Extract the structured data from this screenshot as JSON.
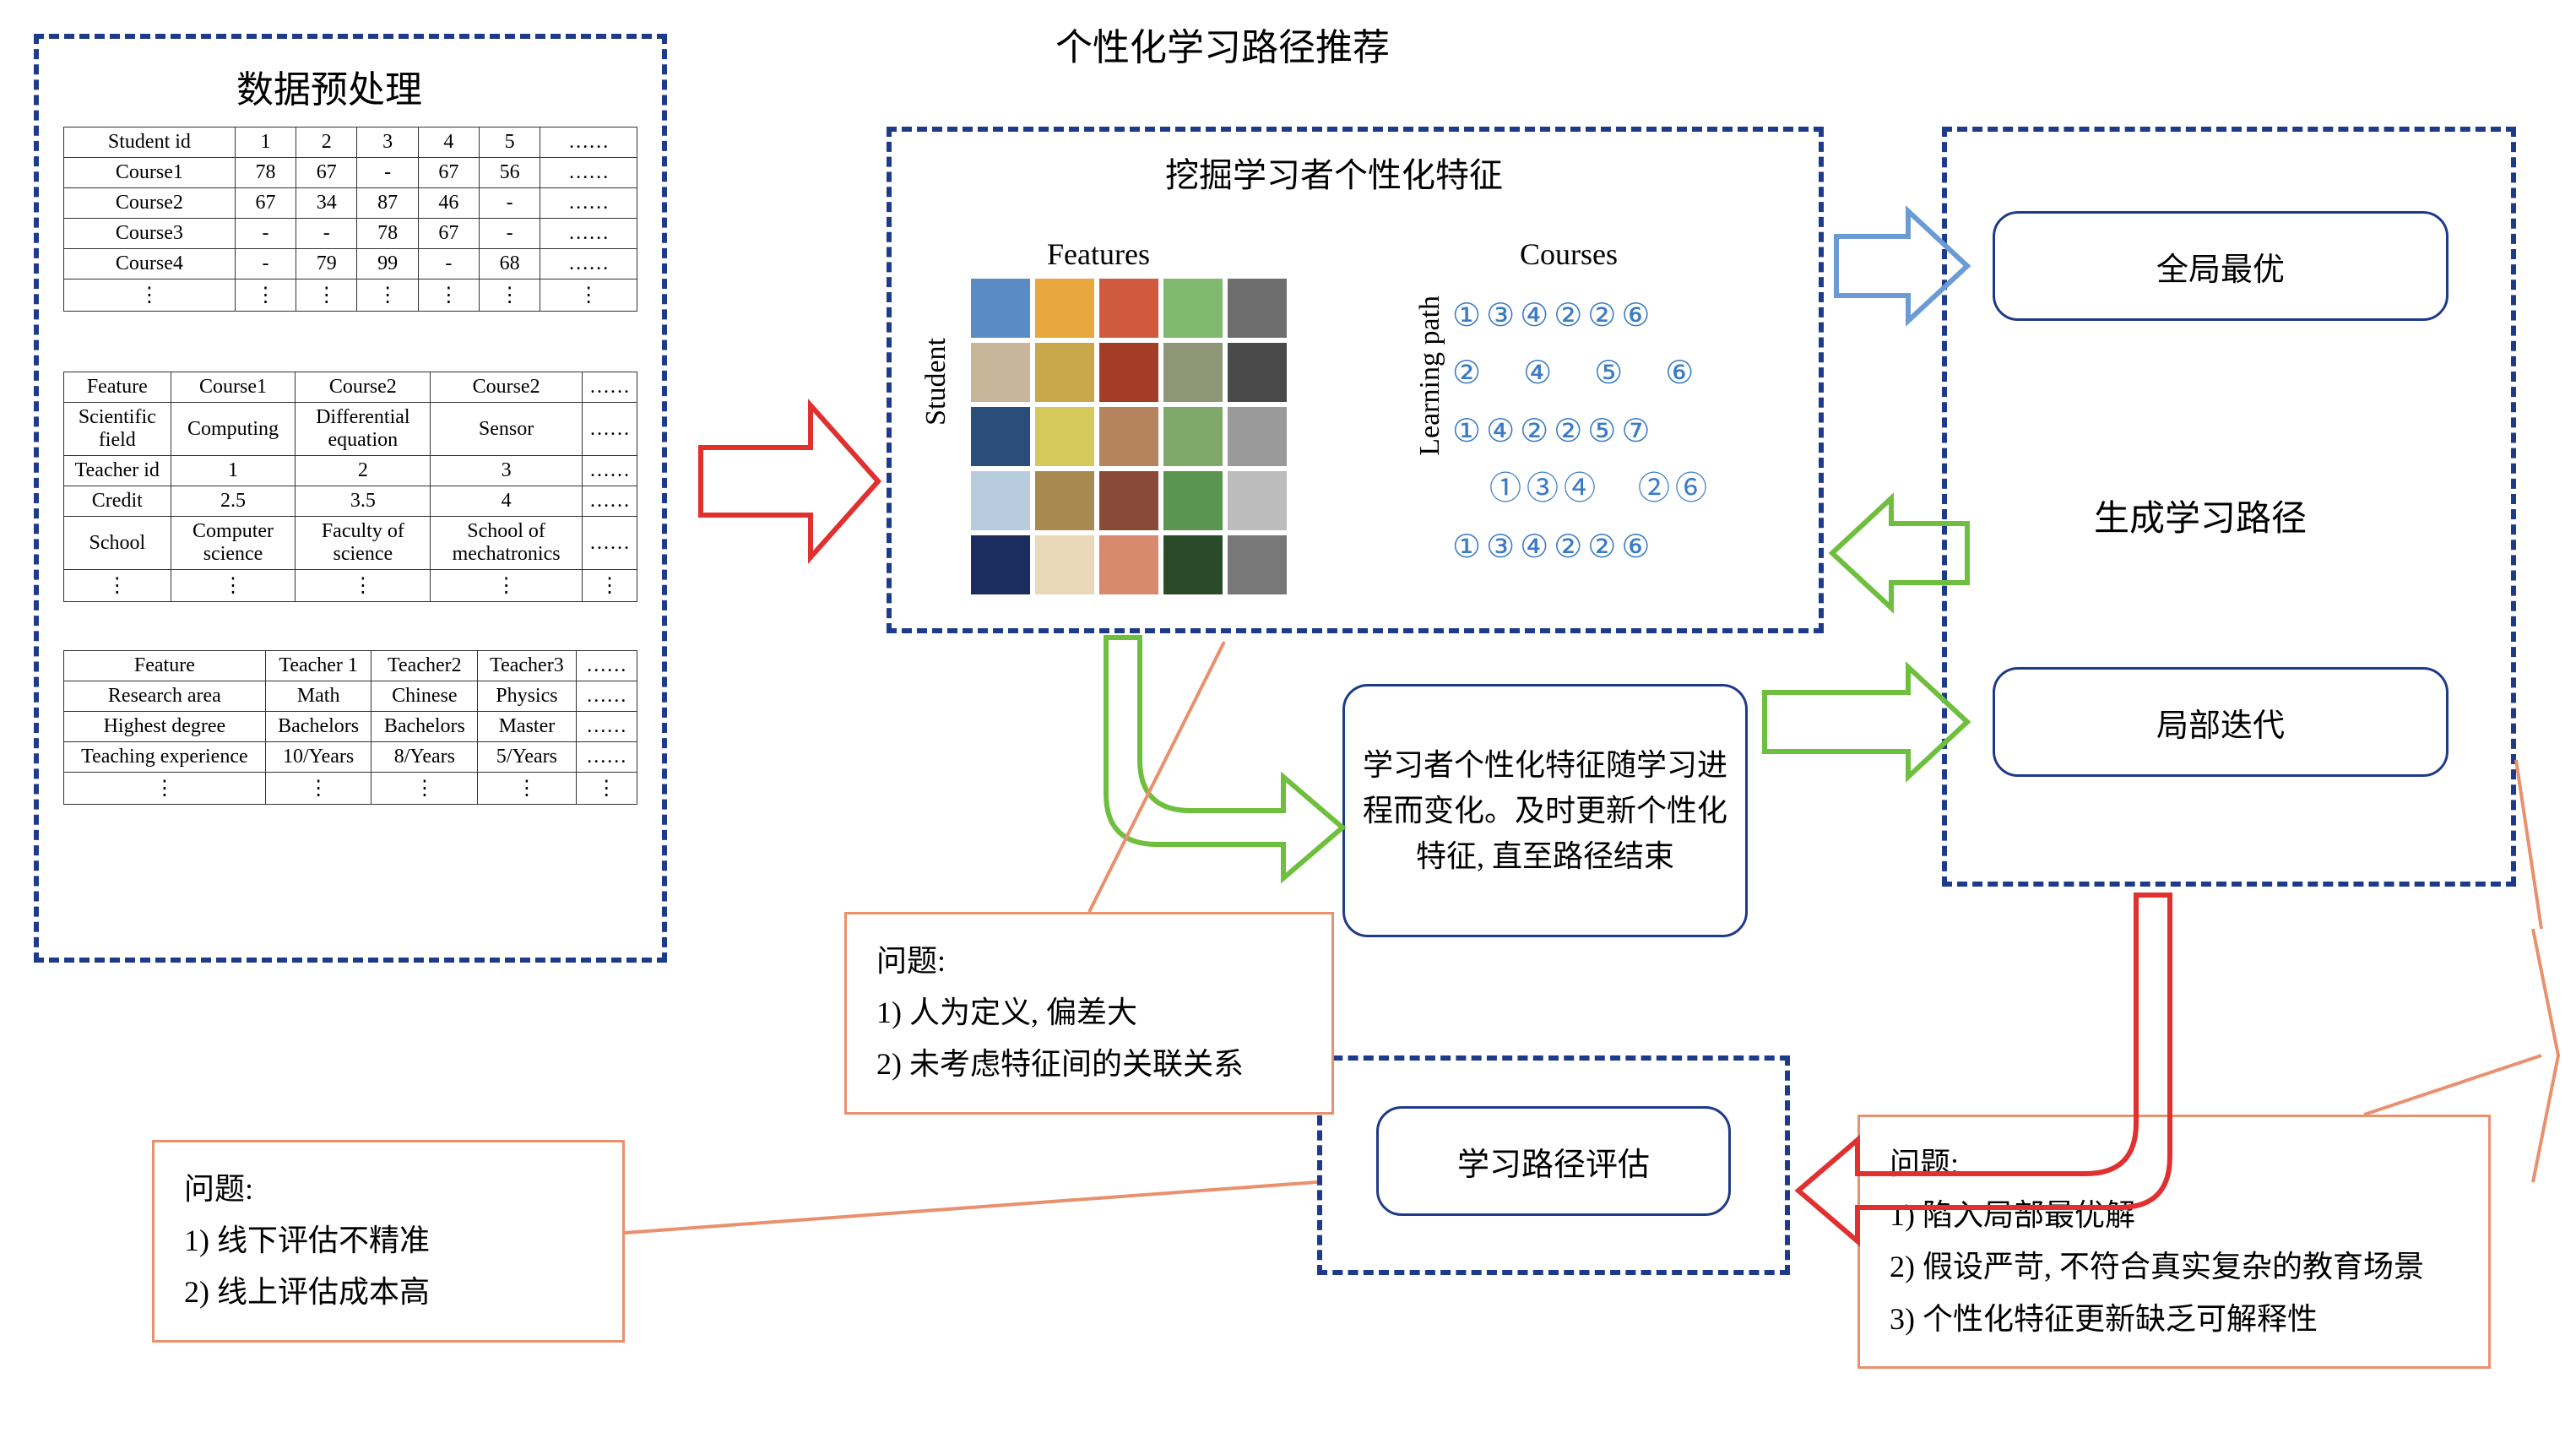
{
  "titles": {
    "main": "个性化学习路径推荐",
    "preprocess": "数据预处理",
    "mining": "挖掘学习者个性化特征",
    "features": "Features",
    "courses": "Courses",
    "student": "Student",
    "learning_path": "Learning path",
    "generate": "生成学习路径"
  },
  "tables": {
    "student_course": {
      "header": [
        "Student id",
        "1",
        "2",
        "3",
        "4",
        "5",
        "……"
      ],
      "rows": [
        [
          "Course1",
          "78",
          "67",
          "-",
          "67",
          "56",
          "……"
        ],
        [
          "Course2",
          "67",
          "34",
          "87",
          "46",
          "-",
          "……"
        ],
        [
          "Course3",
          "-",
          "-",
          "78",
          "67",
          "-",
          "……"
        ],
        [
          "Course4",
          "-",
          "79",
          "99",
          "-",
          "68",
          "……"
        ],
        [
          "⋮",
          "⋮",
          "⋮",
          "⋮",
          "⋮",
          "⋮",
          "⋮"
        ]
      ]
    },
    "course_feature": {
      "header": [
        "Feature",
        "Course1",
        "Course2",
        "Course2",
        "……"
      ],
      "rows": [
        [
          "Scientific field",
          "Computing",
          "Differential equation",
          "Sensor",
          "……"
        ],
        [
          "Teacher id",
          "1",
          "2",
          "3",
          "……"
        ],
        [
          "Credit",
          "2.5",
          "3.5",
          "4",
          "……"
        ],
        [
          "School",
          "Computer science",
          "Faculty of science",
          "School of mechatronics",
          "……"
        ],
        [
          "⋮",
          "⋮",
          "⋮",
          "⋮",
          "⋮"
        ]
      ]
    },
    "teacher_feature": {
      "header": [
        "Feature",
        "Teacher 1",
        "Teacher2",
        "Teacher3",
        "……"
      ],
      "rows": [
        [
          "Research area",
          "Math",
          "Chinese",
          "Physics",
          "……"
        ],
        [
          "Highest degree",
          "Bachelors",
          "Bachelors",
          "Master",
          "……"
        ],
        [
          "Teaching experience",
          "10/Years",
          "8/Years",
          "5/Years",
          "……"
        ],
        [
          "⋮",
          "⋮",
          "⋮",
          "⋮",
          "⋮"
        ]
      ]
    }
  },
  "heatmap_colors": [
    [
      "#5a8bc4",
      "#e5a73e",
      "#d05a3e",
      "#7fb86f",
      "#6e6e6e"
    ],
    [
      "#c9b59a",
      "#c8a84a",
      "#a33d28",
      "#8f9678",
      "#4a4a4a"
    ],
    [
      "#2a4d7a",
      "#d4c95a",
      "#b5845e",
      "#7fa86b",
      "#9a9a9a"
    ],
    [
      "#b8cce0",
      "#a68a4f",
      "#8a4a3a",
      "#5a9650",
      "#bcbcbc"
    ],
    [
      "#1a2d5e",
      "#ead9b8",
      "#d88a6e",
      "#2a4a2a",
      "#787878"
    ]
  ],
  "courses_paths": [
    "①③④②②⑥",
    "②　④　⑤　⑥",
    "①④②②⑤⑦",
    "　①③④　②⑥",
    "①③④②②⑥"
  ],
  "boxes": {
    "global": "全局最优",
    "local": "局部迭代",
    "update": "学习者个性化特征随学习进程而变化。及时更新个性化特征, 直至路径结束",
    "eval": "学习路径评估"
  },
  "problems": {
    "p1": {
      "title": "问题:",
      "items": [
        "1) 人为定义, 偏差大",
        "2) 未考虑特征间的关联关系"
      ]
    },
    "p2": {
      "title": "问题:",
      "items": [
        "1) 线下评估不精准",
        "2) 线上评估成本高"
      ]
    },
    "p3": {
      "title": "问题:",
      "items": [
        "1) 陷入局部最优解",
        "2) 假设严苛, 不符合真实复杂的教育场景",
        "3) 个性化特征更新缺乏可解释性"
      ]
    }
  },
  "arrow_colors": {
    "red": "#e03030",
    "green": "#6fbf3f",
    "blue": "#6a9bd4",
    "orange": "#e9906e",
    "navy": "#1e3a8a"
  }
}
